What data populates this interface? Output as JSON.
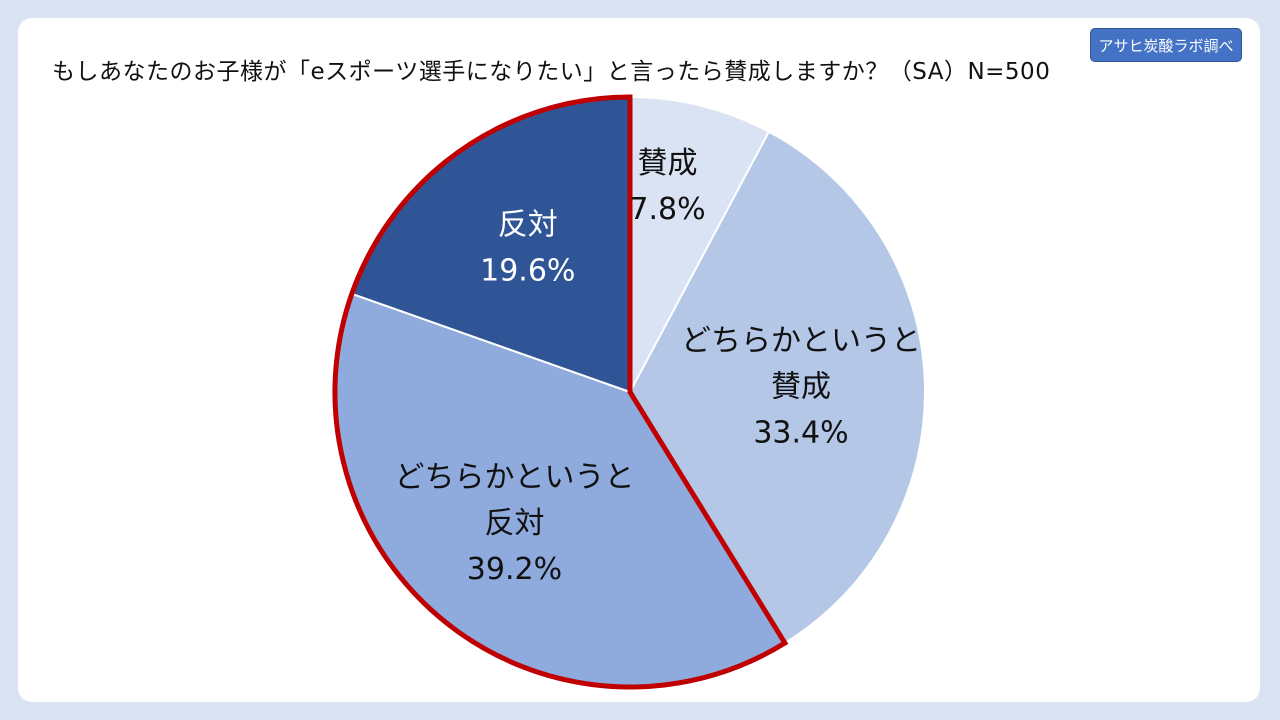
{
  "header": {
    "title": "もしあなたのお子様が「eスポーツ選手になりたい」と言ったら賛成しますか？（SA）N=500",
    "badge": "アサヒ炭酸ラボ調べ"
  },
  "chart_data": {
    "type": "pie",
    "title": "もしあなたのお子様が「eスポーツ選手になりたい」と言ったら賛成しますか？（SA）N=500",
    "start": "12 o'clock",
    "direction": "clockwise",
    "legend": "none (labels inside slices)",
    "highlight_outline_color": "#c00000",
    "slices": [
      {
        "label": "賛成",
        "value": 7.8,
        "value_label": "7.8%",
        "color": "#dae3f3",
        "text_color": "#111111",
        "highlighted": false
      },
      {
        "label": "どちらかというと賛成",
        "value": 33.4,
        "value_label": "33.4%",
        "color": "#b4c7e7",
        "text_color": "#111111",
        "highlighted": false
      },
      {
        "label": "どちらかというと反対",
        "value": 39.2,
        "value_label": "39.2%",
        "color": "#8faadc",
        "text_color": "#111111",
        "highlighted": true
      },
      {
        "label": "反対",
        "value": 19.6,
        "value_label": "19.6%",
        "color": "#2f5597",
        "text_color": "#ffffff",
        "highlighted": true
      }
    ]
  }
}
